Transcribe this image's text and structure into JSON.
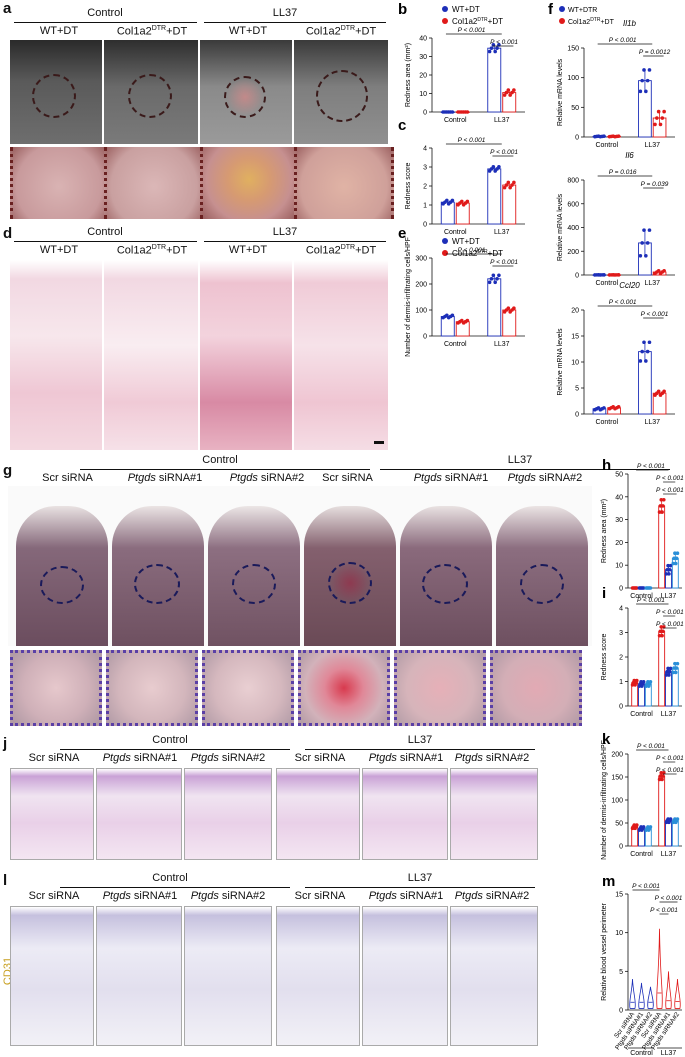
{
  "panels": {
    "a": {
      "label": "a",
      "groups": [
        "Control",
        "LL37"
      ],
      "cols": [
        "WT+DT",
        "Col1a2",
        "DTR",
        "+DT",
        "WT+DT",
        "Col1a2",
        "DTR",
        "+DT"
      ]
    },
    "d": {
      "label": "d",
      "groups": [
        "Control",
        "LL37"
      ],
      "cols": [
        "WT+DT",
        "Col1a2",
        "DTR",
        "+DT",
        "WT+DT",
        "Col1a2",
        "DTR",
        "+DT"
      ]
    },
    "g": {
      "label": "g",
      "groups": [
        "Control",
        "LL37"
      ],
      "cols": [
        "Scr siRNA",
        "Ptgds",
        "siRNA#1",
        "Ptgds",
        "siRNA#2",
        "Scr siRNA",
        "Ptgds",
        "siRNA#1",
        "Ptgds",
        "siRNA#2"
      ]
    },
    "j": {
      "label": "j",
      "groups": [
        "Control",
        "LL37"
      ],
      "cols": [
        "Scr siRNA",
        "Ptgds",
        "siRNA#1",
        "Ptgds",
        "siRNA#2",
        "Scr siRNA",
        "Ptgds",
        "siRNA#1",
        "Ptgds",
        "siRNA#2"
      ]
    },
    "l": {
      "label": "l",
      "groups": [
        "Control",
        "LL37"
      ],
      "cols": [
        "Scr siRNA",
        "Ptgds",
        "siRNA#1",
        "Ptgds",
        "siRNA#2",
        "Scr siRNA",
        "Ptgds",
        "siRNA#1",
        "Ptgds",
        "siRNA#2"
      ],
      "side": "CD31"
    }
  },
  "legend_dt": {
    "s1": "WT+DT",
    "s2a": "Col1a2",
    "s2b": "DTR",
    "s2c": "+DT",
    "colors": [
      "#1d2fb8",
      "#e01a1a"
    ]
  },
  "legend_dtr": {
    "s1": "WT+DTR",
    "s2a": "Col1a2",
    "s2b": "DTR",
    "s2c": "+DT",
    "colors": [
      "#1d2fb8",
      "#e01a1a"
    ]
  },
  "chart_data": [
    {
      "id": "b",
      "type": "bar",
      "ylabel": "Redness area (mm²)",
      "ylim": [
        0,
        40
      ],
      "yticks": [
        0,
        10,
        20,
        30,
        40
      ],
      "categories": [
        "Control",
        "LL37"
      ],
      "series": [
        {
          "name": "WT+DT",
          "values": [
            0,
            34.5
          ],
          "err": [
            0,
            2
          ]
        },
        {
          "name": "Col1a2DTR+DT",
          "values": [
            0,
            10.5
          ],
          "err": [
            0,
            1.5
          ]
        }
      ],
      "annotations": [
        "P < 0.001",
        "P < 0.001"
      ]
    },
    {
      "id": "c",
      "type": "bar",
      "ylabel": "Redness score",
      "ylim": [
        0,
        4
      ],
      "yticks": [
        0,
        1,
        2,
        3,
        4
      ],
      "categories": [
        "Control",
        "LL37"
      ],
      "series": [
        {
          "name": "WT+DT",
          "values": [
            1.15,
            2.9
          ],
          "err": [
            0.1,
            0.12
          ]
        },
        {
          "name": "Col1a2DTR+DT",
          "values": [
            1.1,
            2.05
          ],
          "err": [
            0.1,
            0.15
          ]
        }
      ],
      "annotations": [
        "P < 0.001",
        "P < 0.001"
      ]
    },
    {
      "id": "e",
      "type": "bar",
      "ylabel": "Number of dermis-infiltrating cells/HPF",
      "ylim": [
        0,
        300
      ],
      "yticks": [
        0,
        100,
        200,
        300
      ],
      "categories": [
        "Control",
        "LL37"
      ],
      "series": [
        {
          "name": "WT+DT",
          "values": [
            75,
            220
          ],
          "err": [
            5,
            15
          ]
        },
        {
          "name": "Col1a2DTR+DT",
          "values": [
            55,
            100
          ],
          "err": [
            5,
            8
          ]
        }
      ],
      "annotations": [
        "P < 0.001",
        "P < 0.001"
      ]
    },
    {
      "id": "f1",
      "type": "bar",
      "title": "Il1b",
      "ylabel": "Relative mRNA levels",
      "ylim": [
        0,
        150
      ],
      "yticks": [
        0,
        50,
        100,
        150
      ],
      "categories": [
        "Control",
        "LL37"
      ],
      "series": [
        {
          "name": "WT+DTR",
          "values": [
            1,
            95
          ],
          "err": [
            0.5,
            20
          ]
        },
        {
          "name": "Col1a2DTR+DT",
          "values": [
            1,
            32
          ],
          "err": [
            0.5,
            12
          ]
        }
      ],
      "annotations": [
        "P < 0.001",
        "P = 0.0012"
      ]
    },
    {
      "id": "f2",
      "type": "bar",
      "title": "Il6",
      "ylabel": "Relative mRNA levels",
      "ylim": [
        0,
        800
      ],
      "yticks": [
        0,
        200,
        400,
        600,
        800
      ],
      "categories": [
        "Control",
        "LL37"
      ],
      "series": [
        {
          "name": "WT+DTR",
          "values": [
            1,
            270
          ],
          "err": [
            0.5,
            120
          ]
        },
        {
          "name": "Col1a2DTR+DT",
          "values": [
            1,
            25
          ],
          "err": [
            0.5,
            12
          ]
        }
      ],
      "annotations": [
        "P = 0.016",
        "P = 0.039"
      ]
    },
    {
      "id": "f3",
      "type": "bar",
      "title": "Ccl20",
      "ylabel": "Relative mRNA levels",
      "ylim": [
        0,
        20
      ],
      "yticks": [
        0,
        5,
        10,
        15,
        20
      ],
      "categories": [
        "Control",
        "LL37"
      ],
      "series": [
        {
          "name": "WT+DTR",
          "values": [
            1,
            12
          ],
          "err": [
            0.2,
            2
          ]
        },
        {
          "name": "Col1a2DTR+DT",
          "values": [
            1.2,
            4
          ],
          "err": [
            0.2,
            0.4
          ]
        }
      ],
      "annotations": [
        "P < 0.001",
        "P < 0.001"
      ]
    },
    {
      "id": "h",
      "type": "bar",
      "ylabel": "Redness area (mm²)",
      "ylim": [
        0,
        50
      ],
      "yticks": [
        0,
        10,
        20,
        30,
        40,
        50
      ],
      "categories": [
        "Control",
        "LL37"
      ],
      "series": [
        {
          "name": "Scr siRNA",
          "values": [
            0,
            36
          ],
          "err": [
            0,
            3
          ]
        },
        {
          "name": "Ptgds siRNA#1",
          "values": [
            0,
            8
          ],
          "err": [
            0,
            2
          ]
        },
        {
          "name": "Ptgds siRNA#2",
          "values": [
            0,
            13
          ],
          "err": [
            0,
            2.5
          ]
        }
      ],
      "annotations": [
        "P < 0.001",
        "P < 0.001",
        "P < 0.001"
      ]
    },
    {
      "id": "i",
      "type": "bar",
      "ylabel": "Redness score",
      "ylim": [
        0,
        4
      ],
      "yticks": [
        0,
        1,
        2,
        3,
        4
      ],
      "categories": [
        "Control",
        "LL37"
      ],
      "series": [
        {
          "name": "Scr siRNA",
          "values": [
            0.95,
            3.05
          ],
          "err": [
            0.1,
            0.2
          ]
        },
        {
          "name": "Ptgds siRNA#1",
          "values": [
            0.9,
            1.4
          ],
          "err": [
            0.1,
            0.15
          ]
        },
        {
          "name": "Ptgds siRNA#2",
          "values": [
            0.9,
            1.55
          ],
          "err": [
            0.1,
            0.2
          ]
        }
      ],
      "annotations": [
        "P < 0.001",
        "P < 0.001",
        "P < 0.001"
      ]
    },
    {
      "id": "k",
      "type": "bar",
      "ylabel": "Number of dermis-infiltrating cells/HPF",
      "ylim": [
        0,
        200
      ],
      "yticks": [
        0,
        50,
        100,
        150,
        200
      ],
      "categories": [
        "Control",
        "LL37"
      ],
      "series": [
        {
          "name": "Scr siRNA",
          "values": [
            42,
            152
          ],
          "err": [
            4,
            8
          ]
        },
        {
          "name": "Ptgds siRNA#1",
          "values": [
            38,
            55
          ],
          "err": [
            4,
            4
          ]
        },
        {
          "name": "Ptgds siRNA#2",
          "values": [
            38,
            55
          ],
          "err": [
            4,
            4
          ]
        }
      ],
      "annotations": [
        "P < 0.001",
        "P < 0.001",
        "P < 0.001"
      ]
    },
    {
      "id": "m",
      "type": "violin",
      "ylabel": "Relative blood vessel perimeter",
      "ylim": [
        0,
        15
      ],
      "yticks": [
        0,
        5,
        10,
        15
      ],
      "categories": [
        "Scr siRNA",
        "Ptgds siRNA#1",
        "Ptgds siRNA#2",
        "Scr siRNA",
        "Ptgds siRNA#1",
        "Ptgds siRNA#2"
      ],
      "groups": [
        "Control",
        "LL37"
      ],
      "maxes": [
        4,
        3.5,
        3,
        10.5,
        5,
        4
      ],
      "medians": [
        1,
        1,
        1,
        2.2,
        1.2,
        1.1
      ],
      "annotations": [
        "P < 0.001",
        "P < 0.001",
        "P < 0.001"
      ]
    }
  ]
}
